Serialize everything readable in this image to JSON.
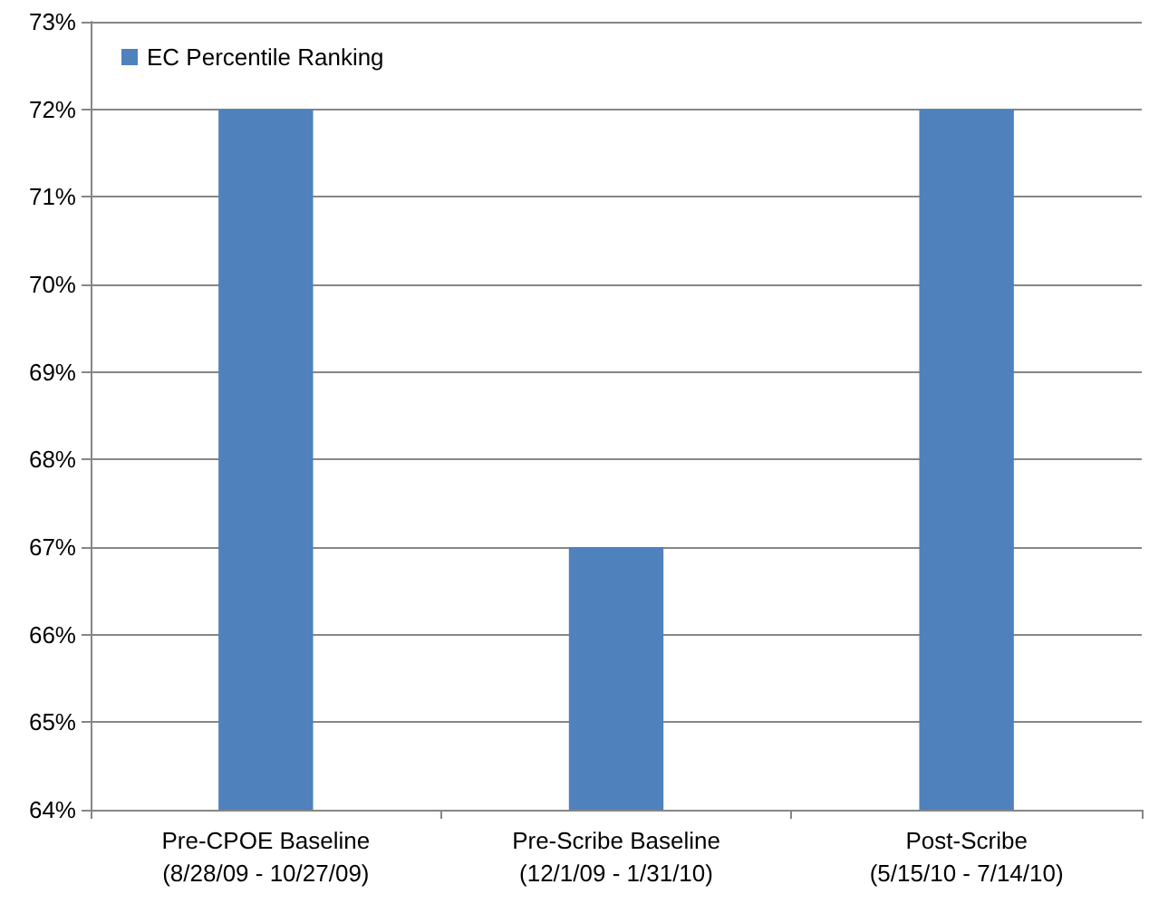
{
  "chart_data": {
    "type": "bar",
    "categories": [
      "Pre-CPOE Baseline\n(8/28/09 - 10/27/09)",
      "Pre-Scribe Baseline\n(12/1/09 - 1/31/10)",
      "Post-Scribe\n(5/15/10 - 7/14/10)"
    ],
    "series": [
      {
        "name": "EC Percentile Ranking",
        "color": "#4f81bd",
        "values": [
          72,
          67,
          72
        ]
      }
    ],
    "ylim": [
      64,
      73
    ],
    "yticks": [
      {
        "value": 64,
        "label": "64%"
      },
      {
        "value": 65,
        "label": "65%"
      },
      {
        "value": 66,
        "label": "66%"
      },
      {
        "value": 67,
        "label": "67%"
      },
      {
        "value": 68,
        "label": "68%"
      },
      {
        "value": 69,
        "label": "69%"
      },
      {
        "value": 70,
        "label": "70%"
      },
      {
        "value": 71,
        "label": "71%"
      },
      {
        "value": 72,
        "label": "72%"
      },
      {
        "value": 73,
        "label": "73%"
      }
    ],
    "grid": "y",
    "legend": "top left"
  }
}
